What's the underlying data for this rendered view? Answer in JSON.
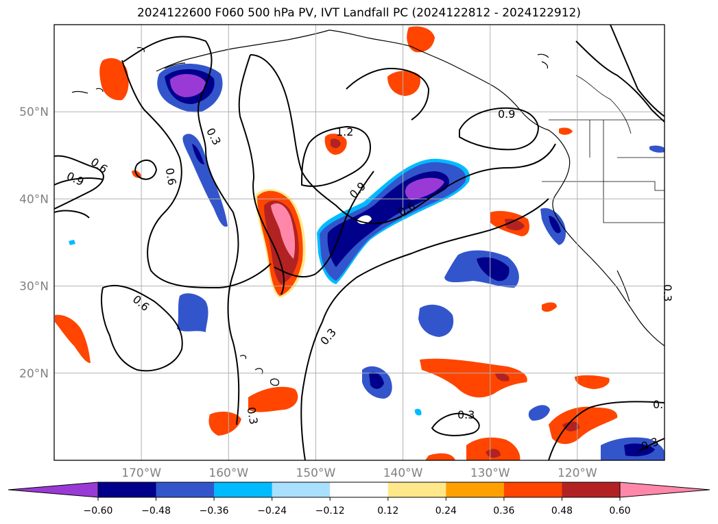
{
  "title": "2024122600 F060 500 hPa PV, IVT Landfall PC (2024122812 - 2024122912)",
  "map": {
    "lon_range": [
      -180,
      -110
    ],
    "lat_range": [
      10,
      60
    ],
    "lat_labels": [
      "20°N",
      "30°N",
      "40°N",
      "50°N"
    ],
    "lat_values": [
      20,
      30,
      40,
      50
    ],
    "lon_labels": [
      "170°W",
      "160°W",
      "150°W",
      "140°W",
      "130°W",
      "120°W"
    ],
    "lon_values": [
      -170,
      -160,
      -150,
      -140,
      -130,
      -120
    ],
    "grid": true,
    "contour_labels": [
      "0.3",
      "0.6",
      "0.6",
      "0.9",
      "0.6",
      "1.2",
      "0.9",
      "0.6",
      "0.9",
      "0.3",
      "0.3",
      "0.3",
      "0.3",
      "0.3",
      "0."
    ]
  },
  "colorbar": {
    "labels": [
      "−0.60",
      "−0.48",
      "−0.36",
      "−0.24",
      "−0.12",
      "0.12",
      "0.24",
      "0.36",
      "0.48",
      "0.60"
    ],
    "colors": [
      "#9a3ad6",
      "#00008b",
      "#3355cc",
      "#00bbff",
      "#aae0ff",
      "#ffffff",
      "#ffe88a",
      "#ffa000",
      "#ff4500",
      "#b22222",
      "#ff88aa"
    ]
  }
}
